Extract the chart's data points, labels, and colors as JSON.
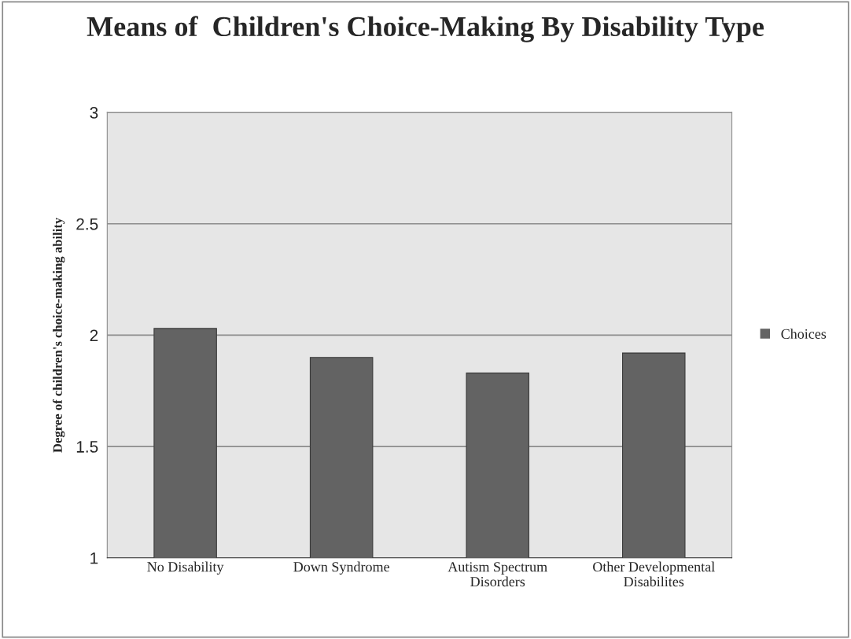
{
  "chart_data": {
    "type": "bar",
    "title": "Means of  Children's Choice-Making By Disability Type",
    "ylabel": "Degree of children's choice-making ability",
    "categories": [
      "No Disability",
      "Down Syndrome",
      "Autism Spectrum\nDisorders",
      "Other Developmental\nDisabilites"
    ],
    "series": [
      {
        "name": "Choices",
        "color": "#636363",
        "values": [
          2.03,
          1.9,
          1.83,
          1.92
        ]
      }
    ],
    "ylim": [
      1,
      3
    ],
    "yticks": [
      1,
      1.5,
      2,
      2.5,
      3
    ],
    "grid": "y",
    "legend": "right"
  }
}
